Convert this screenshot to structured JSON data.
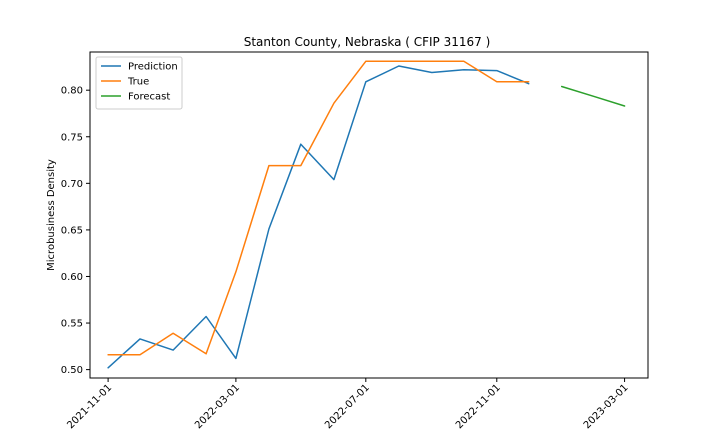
{
  "chart_data": {
    "type": "line",
    "title": "Stanton County, Nebraska ( CFIP 31167 )",
    "xlabel": "",
    "ylabel": "Microbusiness Density",
    "xlim": [
      "2021-10-15",
      "2023-03-23"
    ],
    "ylim": [
      0.491,
      0.841
    ],
    "x_ticks": [
      "2021-11-01",
      "2022-03-01",
      "2022-07-01",
      "2022-11-01",
      "2023-03-01"
    ],
    "y_ticks": [
      "0.50",
      "0.55",
      "0.60",
      "0.65",
      "0.70",
      "0.75",
      "0.80"
    ],
    "legend": {
      "position": "upper-left"
    },
    "grid": false,
    "series": [
      {
        "name": "Prediction",
        "color": "#1f77b4",
        "x": [
          "2021-11-01",
          "2021-12-01",
          "2022-01-01",
          "2022-02-01",
          "2022-03-01",
          "2022-04-01",
          "2022-05-01",
          "2022-06-01",
          "2022-07-01",
          "2022-08-01",
          "2022-09-01",
          "2022-10-01",
          "2022-11-01",
          "2022-12-01"
        ],
        "y": [
          0.502,
          0.533,
          0.521,
          0.557,
          0.512,
          0.651,
          0.742,
          0.704,
          0.809,
          0.826,
          0.819,
          0.822,
          0.821,
          0.807
        ]
      },
      {
        "name": "True",
        "color": "#ff7f0e",
        "x": [
          "2021-11-01",
          "2021-12-01",
          "2022-01-01",
          "2022-02-01",
          "2022-03-01",
          "2022-04-01",
          "2022-05-01",
          "2022-06-01",
          "2022-07-01",
          "2022-08-01",
          "2022-09-01",
          "2022-10-01",
          "2022-11-01",
          "2022-12-01"
        ],
        "y": [
          0.516,
          0.516,
          0.539,
          0.517,
          0.605,
          0.719,
          0.719,
          0.786,
          0.831,
          0.831,
          0.831,
          0.831,
          0.809,
          0.809
        ]
      },
      {
        "name": "Forecast",
        "color": "#2ca02c",
        "x": [
          "2023-01-01",
          "2023-02-01",
          "2023-03-01"
        ],
        "y": [
          0.804,
          0.793,
          0.783
        ]
      }
    ]
  }
}
